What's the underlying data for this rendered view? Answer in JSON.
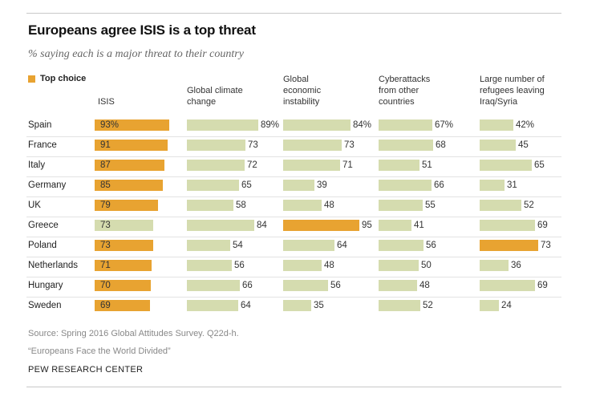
{
  "title": "Europeans agree ISIS is a top threat",
  "subtitle": "% saying each is a major threat to their country",
  "legend_label": "Top choice",
  "colors": {
    "top": "#e8a331",
    "other": "#d5dcaf"
  },
  "source_line": "Source: Spring 2016 Global Attitudes Survey. Q22d-h.",
  "report_line": "“Europeans Face the World Divided”",
  "org": "PEW RESEARCH CENTER",
  "chart_data": {
    "type": "bar",
    "title": "Europeans agree ISIS is a top threat",
    "categories": [
      "Spain",
      "France",
      "Italy",
      "Germany",
      "UK",
      "Greece",
      "Poland",
      "Netherlands",
      "Hungary",
      "Sweden"
    ],
    "xlim": [
      0,
      100
    ],
    "series": [
      {
        "name": "ISIS",
        "values": [
          93,
          91,
          87,
          85,
          79,
          73,
          73,
          71,
          70,
          69
        ],
        "labels": [
          "93%",
          "91",
          "87",
          "85",
          "79",
          "73",
          "73",
          "71",
          "70",
          "69"
        ],
        "top": [
          true,
          true,
          true,
          true,
          true,
          false,
          true,
          true,
          true,
          true
        ]
      },
      {
        "name": "Global climate change",
        "values": [
          89,
          73,
          72,
          65,
          58,
          84,
          54,
          56,
          66,
          64
        ],
        "labels": [
          "89%",
          "73",
          "72",
          "65",
          "58",
          "84",
          "54",
          "56",
          "66",
          "64"
        ],
        "top": [
          false,
          false,
          false,
          false,
          false,
          false,
          false,
          false,
          false,
          false
        ]
      },
      {
        "name": "Global economic instability",
        "values": [
          84,
          73,
          71,
          39,
          48,
          95,
          64,
          48,
          56,
          35
        ],
        "labels": [
          "84%",
          "73",
          "71",
          "39",
          "48",
          "95",
          "64",
          "48",
          "56",
          "35"
        ],
        "top": [
          false,
          false,
          false,
          false,
          false,
          true,
          false,
          false,
          false,
          false
        ]
      },
      {
        "name": "Cyberattacks from other countries",
        "values": [
          67,
          68,
          51,
          66,
          55,
          41,
          56,
          50,
          48,
          52
        ],
        "labels": [
          "67%",
          "68",
          "51",
          "66",
          "55",
          "41",
          "56",
          "50",
          "48",
          "52"
        ],
        "top": [
          false,
          false,
          false,
          false,
          false,
          false,
          false,
          false,
          false,
          false
        ]
      },
      {
        "name": "Large number of refugees leaving Iraq/Syria",
        "values": [
          42,
          45,
          65,
          31,
          52,
          69,
          73,
          36,
          69,
          24
        ],
        "labels": [
          "42%",
          "45",
          "65",
          "31",
          "52",
          "69",
          "73",
          "36",
          "69",
          "24"
        ],
        "top": [
          false,
          false,
          false,
          false,
          false,
          false,
          true,
          false,
          false,
          false
        ]
      }
    ],
    "column_headers": [
      [
        "ISIS"
      ],
      [
        "Global climate",
        "change"
      ],
      [
        "Global",
        "economic",
        "instability"
      ],
      [
        "Cyberattacks",
        "from other",
        "countries"
      ],
      [
        "Large number of",
        "refugees leaving",
        "Iraq/Syria"
      ]
    ]
  }
}
